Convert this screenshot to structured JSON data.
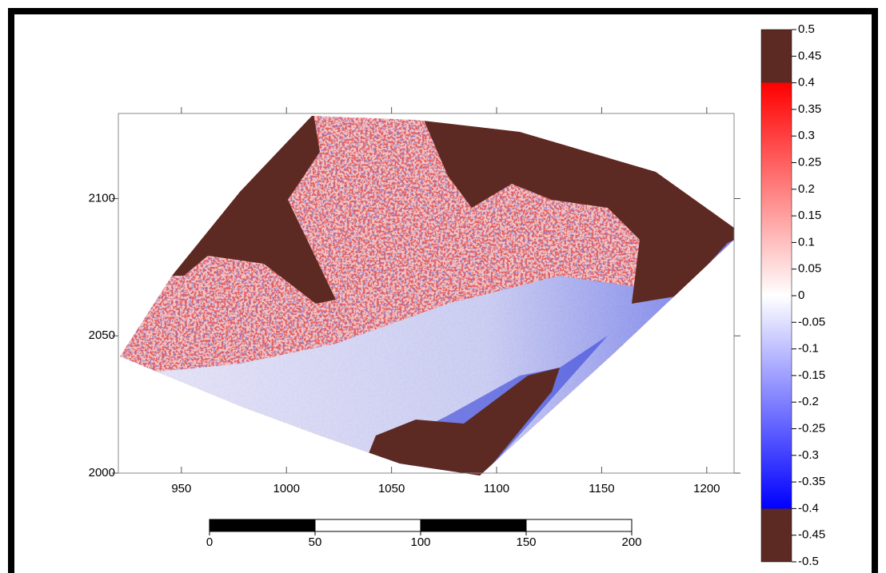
{
  "chart_data": {
    "type": "map",
    "xlim": [
      920,
      1213
    ],
    "xticks": [
      950,
      1000,
      1050,
      1100,
      1150,
      1200
    ],
    "ylim": [
      2000,
      2131
    ],
    "yticks": [
      2000,
      2050,
      2100
    ],
    "colorbar": {
      "lim": [
        -0.5,
        0.5
      ],
      "ticks": [
        0.5,
        0.45,
        0.4,
        0.35,
        0.3,
        0.25,
        0.2,
        0.15,
        0.1,
        0.05,
        0,
        -0.05,
        -0.1,
        -0.15,
        -0.2,
        -0.25,
        -0.3,
        -0.35,
        -0.4,
        -0.45,
        -0.5
      ]
    },
    "scale_bar": {
      "lim": [
        0,
        200
      ],
      "ticks": [
        0,
        50,
        100,
        150,
        200
      ]
    }
  }
}
